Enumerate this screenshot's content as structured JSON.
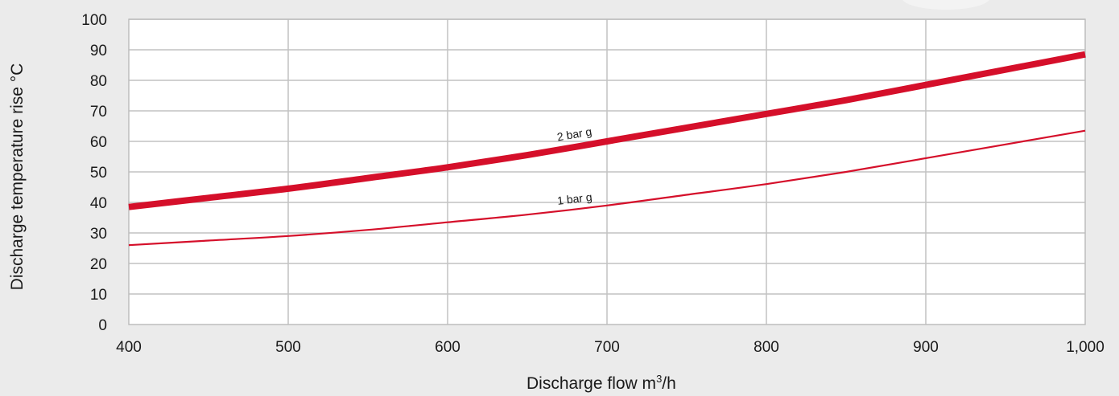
{
  "chart_data": {
    "type": "line",
    "title": "",
    "xlabel": "Discharge flow m",
    "xlabel_sup": "3",
    "xlabel_suffix": "/h",
    "ylabel": "Discharge temperature rise °C",
    "xlim": [
      400,
      1000
    ],
    "ylim": [
      0,
      100
    ],
    "x_ticks": [
      400,
      500,
      600,
      700,
      800,
      900,
      1000
    ],
    "x_tick_labels": [
      "400",
      "500",
      "600",
      "700",
      "800",
      "900",
      "1,000"
    ],
    "y_ticks": [
      0,
      10,
      20,
      30,
      40,
      50,
      60,
      70,
      80,
      90,
      100
    ],
    "y_tick_labels": [
      "0",
      "10",
      "20",
      "30",
      "40",
      "50",
      "60",
      "70",
      "80",
      "90",
      "100"
    ],
    "grid": true,
    "series": [
      {
        "name": "2 bar g",
        "color": "#d50f2a",
        "style": "thick",
        "x": [
          400,
          450,
          500,
          550,
          600,
          650,
          700,
          750,
          800,
          850,
          900,
          950,
          1000
        ],
        "y": [
          38.5,
          41.5,
          44.5,
          48,
          51.5,
          55.5,
          60,
          64.5,
          69,
          73.5,
          78.5,
          83.5,
          88.5
        ],
        "label_at": 680
      },
      {
        "name": "1 bar g",
        "color": "#d50f2a",
        "style": "thin",
        "x": [
          400,
          450,
          500,
          550,
          600,
          650,
          700,
          750,
          800,
          850,
          900,
          950,
          1000
        ],
        "y": [
          26,
          27.5,
          29,
          31,
          33.5,
          36,
          39,
          42.5,
          46,
          50,
          54.5,
          59,
          63.5
        ],
        "label_at": 680
      }
    ]
  }
}
